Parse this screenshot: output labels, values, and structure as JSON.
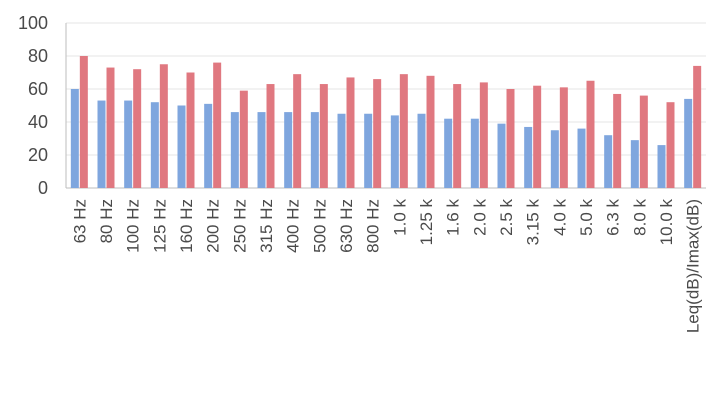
{
  "chart_data": {
    "type": "bar",
    "title": "",
    "xlabel": "",
    "ylabel": "",
    "ylim": [
      0,
      100
    ],
    "yticks": [
      0,
      20,
      40,
      60,
      80,
      100
    ],
    "grid": true,
    "legend": "none",
    "categories": [
      "63 Hz",
      "80 Hz",
      "100 Hz",
      "125 Hz",
      "160 Hz",
      "200 Hz",
      "250 Hz",
      "315 Hz",
      "400 Hz",
      "500 Hz",
      "630 Hz",
      "800 Hz",
      "1.0 k",
      "1.25 k",
      "1.6 k",
      "2.0 k",
      "2.5 k",
      "3.15 k",
      "4.0 k",
      "5.0 k",
      "6.3 k",
      "8.0 k",
      "10.0 k",
      "Leq(dB)/Imax(dB)"
    ],
    "series": [
      {
        "color": "#7fa6de",
        "values": [
          60,
          53,
          53,
          52,
          50,
          51,
          46,
          46,
          46,
          46,
          45,
          45,
          44,
          45,
          42,
          42,
          39,
          37,
          35,
          36,
          32,
          29,
          26,
          54
        ]
      },
      {
        "color": "#e07880",
        "values": [
          80,
          73,
          72,
          75,
          70,
          76,
          59,
          63,
          69,
          63,
          67,
          66,
          69,
          68,
          63,
          64,
          60,
          62,
          61,
          65,
          57,
          56,
          52,
          74
        ]
      }
    ]
  }
}
